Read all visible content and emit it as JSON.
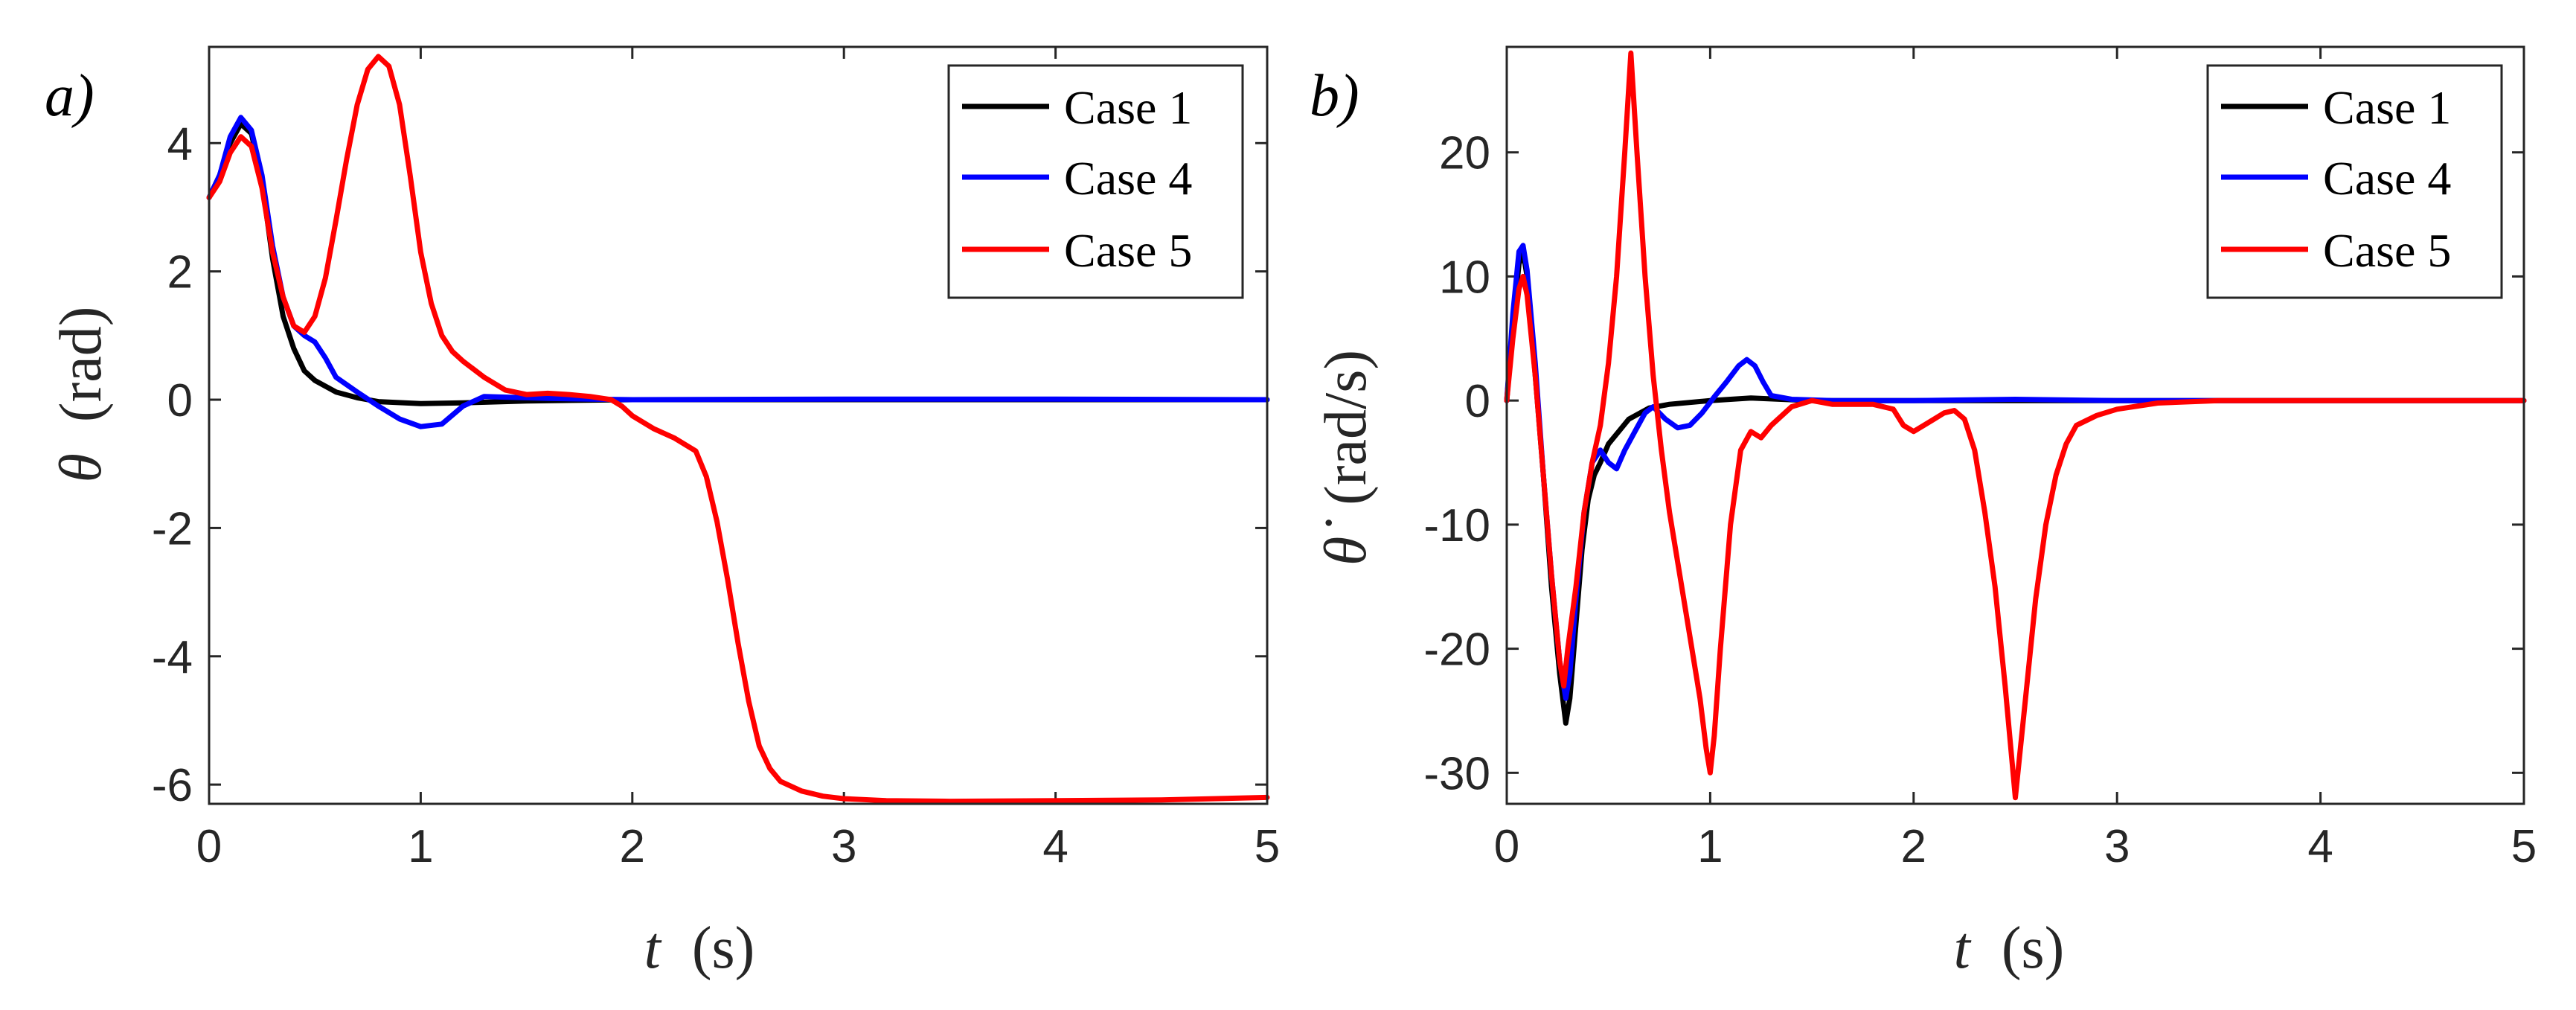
{
  "chart_data": [
    {
      "type": "line",
      "panel_label": "a)",
      "xlabel_var": "t",
      "xlabel_unit": "(s)",
      "ylabel_var": "θ",
      "ylabel_unit": "(rad)",
      "xlim": [
        0,
        5
      ],
      "ylim": [
        -6.3,
        5.5
      ],
      "xticks": [
        0,
        1,
        2,
        3,
        4,
        5
      ],
      "xtick_labels": [
        "0",
        "1",
        "2",
        "3",
        "4",
        "5"
      ],
      "yticks": [
        4,
        2,
        0,
        -2,
        -4,
        -6
      ],
      "ytick_labels": [
        "4",
        "2",
        "0",
        "-2",
        "-4",
        "-6"
      ],
      "legend_position": "top-right",
      "series": [
        {
          "name": "Case 1",
          "color": "#000000",
          "points": [
            [
              0,
              3.15
            ],
            [
              0.05,
              3.5
            ],
            [
              0.1,
              4.0
            ],
            [
              0.15,
              4.3
            ],
            [
              0.2,
              4.15
            ],
            [
              0.25,
              3.4
            ],
            [
              0.3,
              2.2
            ],
            [
              0.35,
              1.3
            ],
            [
              0.4,
              0.8
            ],
            [
              0.45,
              0.45
            ],
            [
              0.5,
              0.3
            ],
            [
              0.6,
              0.12
            ],
            [
              0.7,
              0.03
            ],
            [
              0.8,
              -0.03
            ],
            [
              1.0,
              -0.06
            ],
            [
              1.2,
              -0.05
            ],
            [
              1.5,
              -0.02
            ],
            [
              2,
              0
            ],
            [
              3,
              0
            ],
            [
              4,
              0
            ],
            [
              5,
              0
            ]
          ]
        },
        {
          "name": "Case 4",
          "color": "#0000ff",
          "points": [
            [
              0,
              3.15
            ],
            [
              0.05,
              3.5
            ],
            [
              0.1,
              4.1
            ],
            [
              0.15,
              4.4
            ],
            [
              0.2,
              4.2
            ],
            [
              0.25,
              3.5
            ],
            [
              0.3,
              2.4
            ],
            [
              0.35,
              1.6
            ],
            [
              0.4,
              1.15
            ],
            [
              0.45,
              1.0
            ],
            [
              0.5,
              0.9
            ],
            [
              0.55,
              0.65
            ],
            [
              0.6,
              0.35
            ],
            [
              0.7,
              0.12
            ],
            [
              0.8,
              -0.1
            ],
            [
              0.9,
              -0.3
            ],
            [
              1.0,
              -0.42
            ],
            [
              1.1,
              -0.38
            ],
            [
              1.2,
              -0.1
            ],
            [
              1.3,
              0.05
            ],
            [
              1.4,
              0.04
            ],
            [
              1.6,
              0.02
            ],
            [
              1.8,
              0.01
            ],
            [
              2,
              0
            ],
            [
              3,
              0.01
            ],
            [
              4,
              0.01
            ],
            [
              5,
              0
            ]
          ]
        },
        {
          "name": "Case 5",
          "color": "#ff0000",
          "points": [
            [
              0,
              3.15
            ],
            [
              0.05,
              3.4
            ],
            [
              0.1,
              3.85
            ],
            [
              0.15,
              4.1
            ],
            [
              0.2,
              3.95
            ],
            [
              0.25,
              3.3
            ],
            [
              0.3,
              2.3
            ],
            [
              0.35,
              1.6
            ],
            [
              0.4,
              1.15
            ],
            [
              0.45,
              1.05
            ],
            [
              0.5,
              1.3
            ],
            [
              0.55,
              1.9
            ],
            [
              0.6,
              2.8
            ],
            [
              0.65,
              3.75
            ],
            [
              0.7,
              4.6
            ],
            [
              0.75,
              5.15
            ],
            [
              0.8,
              5.35
            ],
            [
              0.85,
              5.2
            ],
            [
              0.9,
              4.6
            ],
            [
              0.95,
              3.5
            ],
            [
              1.0,
              2.3
            ],
            [
              1.05,
              1.5
            ],
            [
              1.1,
              1.0
            ],
            [
              1.15,
              0.75
            ],
            [
              1.2,
              0.6
            ],
            [
              1.3,
              0.35
            ],
            [
              1.4,
              0.15
            ],
            [
              1.5,
              0.08
            ],
            [
              1.6,
              0.1
            ],
            [
              1.7,
              0.08
            ],
            [
              1.8,
              0.05
            ],
            [
              1.9,
              0.0
            ],
            [
              1.95,
              -0.1
            ],
            [
              2.0,
              -0.25
            ],
            [
              2.1,
              -0.45
            ],
            [
              2.2,
              -0.6
            ],
            [
              2.3,
              -0.8
            ],
            [
              2.35,
              -1.2
            ],
            [
              2.4,
              -1.9
            ],
            [
              2.45,
              -2.8
            ],
            [
              2.5,
              -3.8
            ],
            [
              2.55,
              -4.7
            ],
            [
              2.6,
              -5.4
            ],
            [
              2.65,
              -5.75
            ],
            [
              2.7,
              -5.95
            ],
            [
              2.8,
              -6.1
            ],
            [
              2.9,
              -6.18
            ],
            [
              3.0,
              -6.22
            ],
            [
              3.2,
              -6.25
            ],
            [
              3.5,
              -6.26
            ],
            [
              4.0,
              -6.25
            ],
            [
              4.5,
              -6.24
            ],
            [
              5.0,
              -6.2
            ]
          ]
        }
      ]
    },
    {
      "type": "line",
      "panel_label": "b)",
      "xlabel_var": "t",
      "xlabel_unit": "(s)",
      "ylabel_var": "θ̇",
      "ylabel_unit": "(rad/s)",
      "xlim": [
        0,
        5
      ],
      "ylim": [
        -32.5,
        28.5
      ],
      "xticks": [
        0,
        1,
        2,
        3,
        4,
        5
      ],
      "xtick_labels": [
        "0",
        "1",
        "2",
        "3",
        "4",
        "5"
      ],
      "yticks": [
        20,
        10,
        0,
        -10,
        -20,
        -30
      ],
      "ytick_labels": [
        "20",
        "10",
        "0",
        "-10",
        "-20",
        "-30"
      ],
      "legend_position": "top-right",
      "series": [
        {
          "name": "Case 1",
          "color": "#000000",
          "points": [
            [
              0,
              0
            ],
            [
              0.03,
              6
            ],
            [
              0.06,
              11
            ],
            [
              0.08,
              12
            ],
            [
              0.1,
              10
            ],
            [
              0.14,
              2
            ],
            [
              0.18,
              -6
            ],
            [
              0.22,
              -15
            ],
            [
              0.26,
              -22
            ],
            [
              0.29,
              -26
            ],
            [
              0.31,
              -24
            ],
            [
              0.34,
              -18
            ],
            [
              0.37,
              -12
            ],
            [
              0.4,
              -8
            ],
            [
              0.43,
              -6
            ],
            [
              0.46,
              -5
            ],
            [
              0.5,
              -3.5
            ],
            [
              0.55,
              -2.5
            ],
            [
              0.6,
              -1.5
            ],
            [
              0.7,
              -0.6
            ],
            [
              0.8,
              -0.3
            ],
            [
              1.0,
              0
            ],
            [
              1.2,
              0.2
            ],
            [
              1.5,
              0
            ],
            [
              2,
              0
            ],
            [
              3,
              0
            ],
            [
              4,
              0
            ],
            [
              5,
              0
            ]
          ]
        },
        {
          "name": "Case 4",
          "color": "#0000ff",
          "points": [
            [
              0,
              0
            ],
            [
              0.03,
              7
            ],
            [
              0.06,
              12
            ],
            [
              0.08,
              12.5
            ],
            [
              0.1,
              10.5
            ],
            [
              0.14,
              3
            ],
            [
              0.18,
              -6
            ],
            [
              0.22,
              -14
            ],
            [
              0.26,
              -21
            ],
            [
              0.29,
              -24
            ],
            [
              0.31,
              -22
            ],
            [
              0.34,
              -16
            ],
            [
              0.38,
              -9
            ],
            [
              0.42,
              -5
            ],
            [
              0.46,
              -4
            ],
            [
              0.5,
              -5
            ],
            [
              0.54,
              -5.5
            ],
            [
              0.58,
              -4
            ],
            [
              0.63,
              -2.5
            ],
            [
              0.68,
              -1
            ],
            [
              0.72,
              -0.5
            ],
            [
              0.78,
              -1.5
            ],
            [
              0.84,
              -2.2
            ],
            [
              0.9,
              -2
            ],
            [
              0.96,
              -1
            ],
            [
              1.02,
              0.3
            ],
            [
              1.08,
              1.5
            ],
            [
              1.14,
              2.8
            ],
            [
              1.18,
              3.3
            ],
            [
              1.22,
              2.8
            ],
            [
              1.26,
              1.5
            ],
            [
              1.3,
              0.4
            ],
            [
              1.4,
              0.1
            ],
            [
              1.6,
              0
            ],
            [
              2,
              0
            ],
            [
              2.5,
              0.1
            ],
            [
              3,
              0
            ],
            [
              4,
              0
            ],
            [
              5,
              0
            ]
          ]
        },
        {
          "name": "Case 5",
          "color": "#ff0000",
          "points": [
            [
              0,
              0
            ],
            [
              0.03,
              5
            ],
            [
              0.06,
              9
            ],
            [
              0.08,
              10
            ],
            [
              0.1,
              8.5
            ],
            [
              0.14,
              2
            ],
            [
              0.18,
              -6
            ],
            [
              0.22,
              -14
            ],
            [
              0.26,
              -21
            ],
            [
              0.28,
              -23
            ],
            [
              0.3,
              -20
            ],
            [
              0.34,
              -15
            ],
            [
              0.38,
              -9
            ],
            [
              0.42,
              -5
            ],
            [
              0.46,
              -2
            ],
            [
              0.5,
              3
            ],
            [
              0.54,
              10
            ],
            [
              0.58,
              20
            ],
            [
              0.61,
              28
            ],
            [
              0.64,
              20
            ],
            [
              0.68,
              10
            ],
            [
              0.72,
              2
            ],
            [
              0.76,
              -4
            ],
            [
              0.8,
              -9
            ],
            [
              0.85,
              -14
            ],
            [
              0.9,
              -19
            ],
            [
              0.95,
              -24
            ],
            [
              0.98,
              -28
            ],
            [
              1.0,
              -30
            ],
            [
              1.02,
              -27
            ],
            [
              1.05,
              -20
            ],
            [
              1.1,
              -10
            ],
            [
              1.15,
              -4
            ],
            [
              1.2,
              -2.5
            ],
            [
              1.25,
              -3
            ],
            [
              1.3,
              -2
            ],
            [
              1.4,
              -0.5
            ],
            [
              1.5,
              0
            ],
            [
              1.6,
              -0.3
            ],
            [
              1.7,
              -0.3
            ],
            [
              1.8,
              -0.3
            ],
            [
              1.9,
              -0.7
            ],
            [
              1.95,
              -2
            ],
            [
              2.0,
              -2.5
            ],
            [
              2.05,
              -2
            ],
            [
              2.1,
              -1.5
            ],
            [
              2.15,
              -1
            ],
            [
              2.2,
              -0.8
            ],
            [
              2.25,
              -1.5
            ],
            [
              2.3,
              -4
            ],
            [
              2.35,
              -9
            ],
            [
              2.4,
              -15
            ],
            [
              2.45,
              -23
            ],
            [
              2.5,
              -32
            ],
            [
              2.55,
              -24
            ],
            [
              2.6,
              -16
            ],
            [
              2.65,
              -10
            ],
            [
              2.7,
              -6
            ],
            [
              2.75,
              -3.5
            ],
            [
              2.8,
              -2
            ],
            [
              2.9,
              -1.2
            ],
            [
              3.0,
              -0.7
            ],
            [
              3.2,
              -0.2
            ],
            [
              3.5,
              0
            ],
            [
              4,
              0
            ],
            [
              5,
              0
            ]
          ]
        }
      ]
    }
  ]
}
